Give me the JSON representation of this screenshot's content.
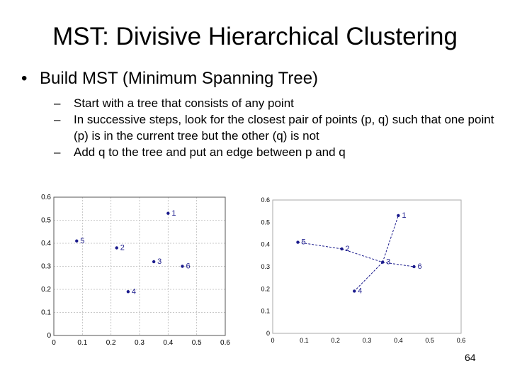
{
  "slide": {
    "title": "MST: Divisive Hierarchical Clustering",
    "bullet": "Build MST (Minimum Spanning Tree)",
    "dash": "–",
    "subbullets": [
      "Start with a tree that consists of any point",
      "In successive steps, look for the closest pair of points (p, q)  such that one point (p) is in the current tree but the other (q) is not",
      "Add q to the tree and put an edge between p and q"
    ],
    "page_number": "64"
  },
  "chart_data": [
    {
      "type": "scatter",
      "xlim": [
        0,
        0.6
      ],
      "ylim": [
        0,
        0.6
      ],
      "xticks": [
        "0",
        "0.1",
        "0.2",
        "0.3",
        "0.4",
        "0.5",
        "0.6"
      ],
      "yticks": [
        "0",
        "0.1",
        "0.2",
        "0.3",
        "0.4",
        "0.5",
        "0.6"
      ],
      "grid": true,
      "points": [
        {
          "label": "1",
          "x": 0.4,
          "y": 0.53
        },
        {
          "label": "2",
          "x": 0.22,
          "y": 0.38
        },
        {
          "label": "3",
          "x": 0.35,
          "y": 0.32
        },
        {
          "label": "4",
          "x": 0.26,
          "y": 0.19
        },
        {
          "label": "5",
          "x": 0.08,
          "y": 0.41
        },
        {
          "label": "6",
          "x": 0.45,
          "y": 0.3
        }
      ],
      "color": "#1a1a8c"
    },
    {
      "type": "scatter",
      "xlim": [
        0,
        0.6
      ],
      "ylim": [
        0,
        0.6
      ],
      "xticks": [
        "0",
        "0.1",
        "0.2",
        "0.3",
        "0.4",
        "0.5",
        "0.6"
      ],
      "yticks": [
        "0",
        "0.1",
        "0.2",
        "0.3",
        "0.4",
        "0.5",
        "0.6"
      ],
      "grid": false,
      "points": [
        {
          "label": "1",
          "x": 0.4,
          "y": 0.53
        },
        {
          "label": "2",
          "x": 0.22,
          "y": 0.38
        },
        {
          "label": "3",
          "x": 0.35,
          "y": 0.32
        },
        {
          "label": "4",
          "x": 0.26,
          "y": 0.19
        },
        {
          "label": "5",
          "x": 0.08,
          "y": 0.41
        },
        {
          "label": "6",
          "x": 0.45,
          "y": 0.3
        }
      ],
      "edges": [
        [
          "5",
          "2"
        ],
        [
          "2",
          "3"
        ],
        [
          "3",
          "1"
        ],
        [
          "3",
          "4"
        ],
        [
          "3",
          "6"
        ]
      ],
      "color": "#1a1a8c"
    }
  ]
}
